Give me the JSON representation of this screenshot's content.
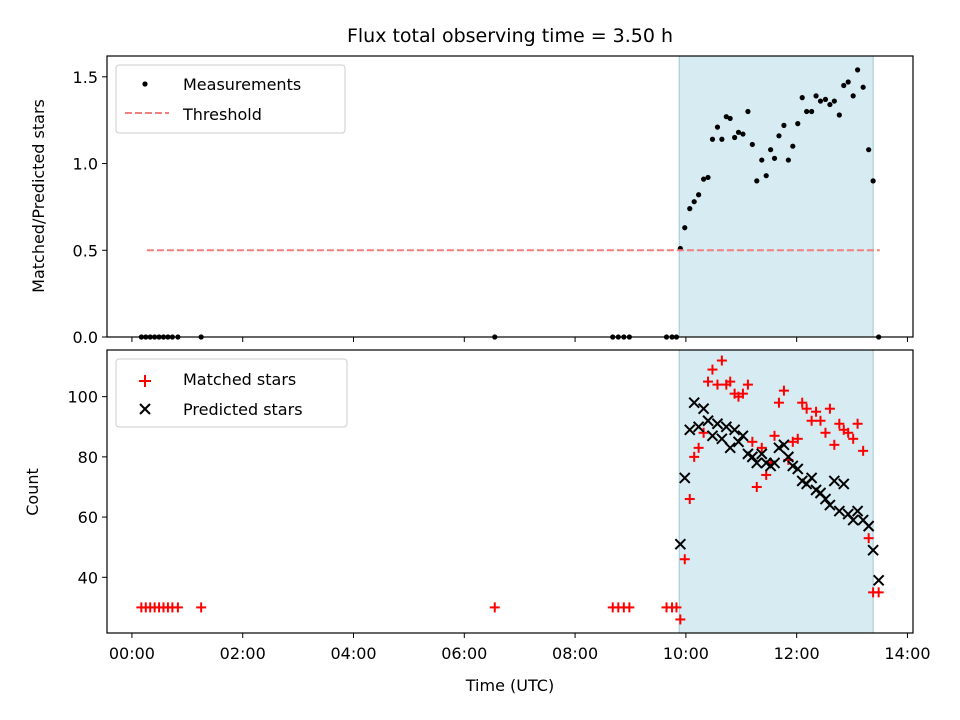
{
  "figure": {
    "title": "Flux total observing time = 3.50 h",
    "xlabel": "Time (UTC)",
    "x_ticks": [
      "00:00",
      "02:00",
      "04:00",
      "06:00",
      "08:00",
      "10:00",
      "12:00",
      "14:00"
    ]
  },
  "chart_data": [
    {
      "type": "scatter",
      "ylabel": "Matched/Predicted stars",
      "xlim_hours": [
        -0.45,
        14.1
      ],
      "ylim": [
        0,
        1.62
      ],
      "y_ticks": [
        "0.0",
        "0.5",
        "1.0",
        "1.5"
      ],
      "y_tick_values": [
        0,
        0.5,
        1.0,
        1.5
      ],
      "legend_position": "upper-left",
      "shaded_interval_hours": [
        9.88,
        13.38
      ],
      "shade_color": "#add8e6",
      "series": [
        {
          "name": "Measurements",
          "marker": "dot",
          "color": "#000000",
          "points": [
            [
              0.17,
              0
            ],
            [
              0.25,
              0
            ],
            [
              0.33,
              0
            ],
            [
              0.41,
              0
            ],
            [
              0.49,
              0
            ],
            [
              0.57,
              0
            ],
            [
              0.65,
              0
            ],
            [
              0.73,
              0
            ],
            [
              0.83,
              0
            ],
            [
              1.25,
              0
            ],
            [
              6.55,
              0
            ],
            [
              8.68,
              0
            ],
            [
              8.78,
              0
            ],
            [
              8.88,
              0
            ],
            [
              8.98,
              0
            ],
            [
              9.65,
              0
            ],
            [
              9.75,
              0
            ],
            [
              9.83,
              0
            ],
            [
              9.9,
              0.51
            ],
            [
              9.98,
              0.63
            ],
            [
              10.07,
              0.74
            ],
            [
              10.15,
              0.78
            ],
            [
              10.23,
              0.82
            ],
            [
              10.32,
              0.91
            ],
            [
              10.4,
              0.92
            ],
            [
              10.48,
              1.14
            ],
            [
              10.57,
              1.21
            ],
            [
              10.65,
              1.14
            ],
            [
              10.73,
              1.27
            ],
            [
              10.8,
              1.26
            ],
            [
              10.88,
              1.15
            ],
            [
              10.95,
              1.18
            ],
            [
              11.03,
              1.17
            ],
            [
              11.12,
              1.3
            ],
            [
              11.2,
              1.11
            ],
            [
              11.28,
              0.9
            ],
            [
              11.37,
              1.02
            ],
            [
              11.45,
              0.93
            ],
            [
              11.53,
              1.08
            ],
            [
              11.6,
              1.03
            ],
            [
              11.68,
              1.16
            ],
            [
              11.77,
              1.22
            ],
            [
              11.85,
              1.02
            ],
            [
              11.93,
              1.1
            ],
            [
              12.02,
              1.23
            ],
            [
              12.1,
              1.38
            ],
            [
              12.18,
              1.3
            ],
            [
              12.27,
              1.3
            ],
            [
              12.35,
              1.39
            ],
            [
              12.43,
              1.36
            ],
            [
              12.52,
              1.37
            ],
            [
              12.6,
              1.34
            ],
            [
              12.68,
              1.36
            ],
            [
              12.77,
              1.28
            ],
            [
              12.85,
              1.45
            ],
            [
              12.93,
              1.47
            ],
            [
              13.02,
              1.39
            ],
            [
              13.1,
              1.54
            ],
            [
              13.2,
              1.44
            ],
            [
              13.3,
              1.08
            ],
            [
              13.38,
              0.9
            ],
            [
              13.48,
              0
            ]
          ]
        },
        {
          "name": "Threshold",
          "marker": "dashed-line",
          "color": "#f08080",
          "points": [
            [
              0.27,
              0.5
            ],
            [
              13.5,
              0.5
            ]
          ]
        }
      ]
    },
    {
      "type": "scatter",
      "ylabel": "Count",
      "xlim_hours": [
        -0.45,
        14.1
      ],
      "ylim": [
        21.5,
        115.5
      ],
      "y_ticks": [
        "40",
        "60",
        "80",
        "100"
      ],
      "y_tick_values": [
        40,
        60,
        80,
        100
      ],
      "legend_position": "upper-left",
      "shaded_interval_hours": [
        9.88,
        13.38
      ],
      "shade_color": "#add8e6",
      "series": [
        {
          "name": "Matched stars",
          "marker": "plus",
          "color": "#ff0000",
          "points": [
            [
              0.17,
              30
            ],
            [
              0.25,
              30
            ],
            [
              0.33,
              30
            ],
            [
              0.41,
              30
            ],
            [
              0.49,
              30
            ],
            [
              0.57,
              30
            ],
            [
              0.65,
              30
            ],
            [
              0.73,
              30
            ],
            [
              0.83,
              30
            ],
            [
              1.25,
              30
            ],
            [
              6.55,
              30
            ],
            [
              8.68,
              30
            ],
            [
              8.78,
              30
            ],
            [
              8.88,
              30
            ],
            [
              8.98,
              30
            ],
            [
              9.65,
              30
            ],
            [
              9.75,
              30
            ],
            [
              9.83,
              30
            ],
            [
              9.9,
              26
            ],
            [
              9.98,
              46
            ],
            [
              10.07,
              66
            ],
            [
              10.15,
              80
            ],
            [
              10.23,
              83
            ],
            [
              10.32,
              88
            ],
            [
              10.4,
              105
            ],
            [
              10.48,
              109
            ],
            [
              10.57,
              104
            ],
            [
              10.65,
              112
            ],
            [
              10.73,
              104
            ],
            [
              10.8,
              105
            ],
            [
              10.88,
              101
            ],
            [
              10.95,
              100
            ],
            [
              11.03,
              101
            ],
            [
              11.12,
              104
            ],
            [
              11.2,
              85
            ],
            [
              11.28,
              70
            ],
            [
              11.37,
              83
            ],
            [
              11.45,
              74
            ],
            [
              11.53,
              78
            ],
            [
              11.6,
              87
            ],
            [
              11.68,
              98
            ],
            [
              11.77,
              102
            ],
            [
              11.85,
              79
            ],
            [
              11.93,
              85
            ],
            [
              12.02,
              86
            ],
            [
              12.1,
              98
            ],
            [
              12.18,
              96
            ],
            [
              12.27,
              92
            ],
            [
              12.35,
              95
            ],
            [
              12.43,
              92
            ],
            [
              12.52,
              88
            ],
            [
              12.6,
              96
            ],
            [
              12.68,
              84
            ],
            [
              12.77,
              91
            ],
            [
              12.85,
              89
            ],
            [
              12.93,
              88
            ],
            [
              13.02,
              86
            ],
            [
              13.1,
              91
            ],
            [
              13.2,
              82
            ],
            [
              13.3,
              53
            ],
            [
              13.38,
              35
            ],
            [
              13.48,
              35
            ]
          ]
        },
        {
          "name": "Predicted stars",
          "marker": "x",
          "color": "#000000",
          "points": [
            [
              9.9,
              51
            ],
            [
              9.98,
              73
            ],
            [
              10.07,
              89
            ],
            [
              10.15,
              98
            ],
            [
              10.23,
              90
            ],
            [
              10.32,
              96
            ],
            [
              10.4,
              92
            ],
            [
              10.48,
              87
            ],
            [
              10.57,
              91
            ],
            [
              10.65,
              86
            ],
            [
              10.73,
              90
            ],
            [
              10.8,
              83
            ],
            [
              10.88,
              89
            ],
            [
              10.95,
              85
            ],
            [
              11.03,
              87
            ],
            [
              11.12,
              81
            ],
            [
              11.2,
              80
            ],
            [
              11.28,
              78
            ],
            [
              11.37,
              81
            ],
            [
              11.45,
              78
            ],
            [
              11.53,
              77
            ],
            [
              11.6,
              78
            ],
            [
              11.68,
              83
            ],
            [
              11.77,
              84
            ],
            [
              11.85,
              80
            ],
            [
              11.93,
              77
            ],
            [
              12.02,
              76
            ],
            [
              12.1,
              72
            ],
            [
              12.18,
              71
            ],
            [
              12.27,
              73
            ],
            [
              12.35,
              69
            ],
            [
              12.43,
              68
            ],
            [
              12.52,
              66
            ],
            [
              12.6,
              64
            ],
            [
              12.68,
              72
            ],
            [
              12.77,
              62
            ],
            [
              12.85,
              71
            ],
            [
              12.93,
              61
            ],
            [
              13.02,
              59
            ],
            [
              13.1,
              62
            ],
            [
              13.2,
              59
            ],
            [
              13.3,
              57
            ],
            [
              13.38,
              49
            ],
            [
              13.48,
              39
            ]
          ]
        }
      ]
    }
  ]
}
